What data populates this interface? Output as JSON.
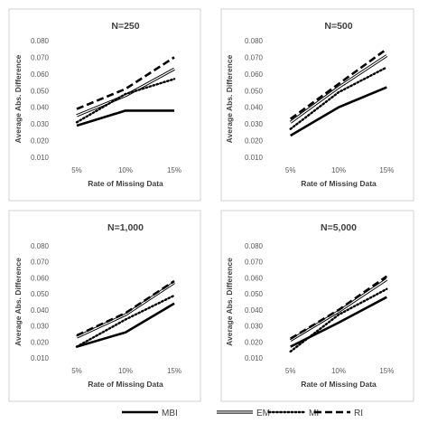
{
  "chart_data": {
    "type": "line",
    "categories": [
      "5%",
      "10%",
      "15%"
    ],
    "xlabel": "Rate of Missing Data",
    "ylabel": "Average Abs. Difference",
    "ylim": [
      0.01,
      0.08
    ],
    "yticks": [
      "0.010",
      "0.020",
      "0.030",
      "0.040",
      "0.050",
      "0.060",
      "0.070",
      "0.080"
    ],
    "grid": false,
    "legend_position": "bottom",
    "legend": [
      {
        "name": "MBI",
        "style": "solid",
        "color": "#000000"
      },
      {
        "name": "EM",
        "style": "double",
        "color": "#000000"
      },
      {
        "name": "MI",
        "style": "dotted",
        "color": "#000000"
      },
      {
        "name": "RI",
        "style": "dashed",
        "color": "#000000"
      }
    ],
    "panels": [
      {
        "title": "N=250",
        "series": [
          {
            "name": "MBI",
            "values": [
              0.029,
              0.038,
              0.038
            ]
          },
          {
            "name": "EM",
            "values": [
              0.035,
              0.047,
              0.063
            ]
          },
          {
            "name": "MI",
            "values": [
              0.031,
              0.048,
              0.057
            ]
          },
          {
            "name": "RI",
            "values": [
              0.039,
              0.051,
              0.07
            ]
          }
        ]
      },
      {
        "title": "N=500",
        "series": [
          {
            "name": "MBI",
            "values": [
              0.023,
              0.04,
              0.052
            ]
          },
          {
            "name": "EM",
            "values": [
              0.031,
              0.052,
              0.071
            ]
          },
          {
            "name": "MI",
            "values": [
              0.027,
              0.049,
              0.064
            ]
          },
          {
            "name": "RI",
            "values": [
              0.033,
              0.054,
              0.075
            ]
          }
        ]
      },
      {
        "title": "N=1,000",
        "series": [
          {
            "name": "MBI",
            "values": [
              0.017,
              0.026,
              0.044
            ]
          },
          {
            "name": "EM",
            "values": [
              0.023,
              0.037,
              0.057
            ]
          },
          {
            "name": "MI",
            "values": [
              0.017,
              0.034,
              0.049
            ]
          },
          {
            "name": "RI",
            "values": [
              0.024,
              0.038,
              0.058
            ]
          }
        ]
      },
      {
        "title": "N=5,000",
        "series": [
          {
            "name": "MBI",
            "values": [
              0.017,
              0.032,
              0.048
            ]
          },
          {
            "name": "EM",
            "values": [
              0.021,
              0.039,
              0.059
            ]
          },
          {
            "name": "MI",
            "values": [
              0.014,
              0.037,
              0.053
            ]
          },
          {
            "name": "RI",
            "values": [
              0.022,
              0.04,
              0.061
            ]
          }
        ]
      }
    ]
  }
}
